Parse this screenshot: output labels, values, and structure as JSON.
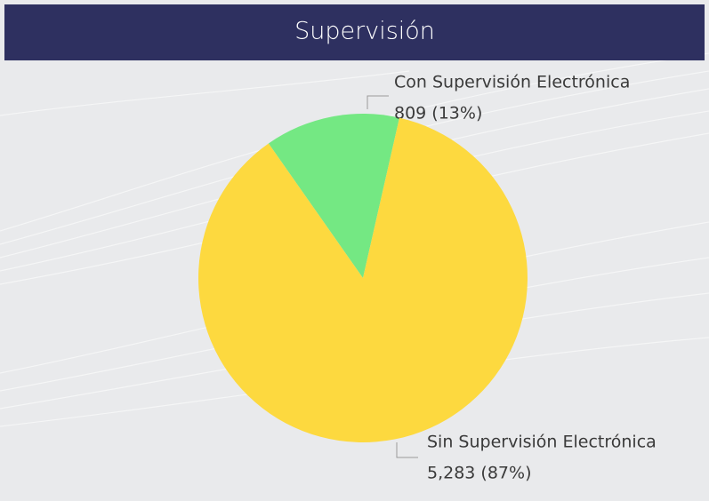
{
  "chart_data": {
    "type": "pie",
    "title": "Supervisión",
    "categories": [
      "Con Supervisión Electrónica",
      "Sin Supervisión Electrónica"
    ],
    "values": [
      809,
      5283
    ],
    "value_labels": [
      "809 (13%)",
      "5,283 (87%)"
    ],
    "colors": [
      "#74e883",
      "#fdd93f"
    ]
  }
}
